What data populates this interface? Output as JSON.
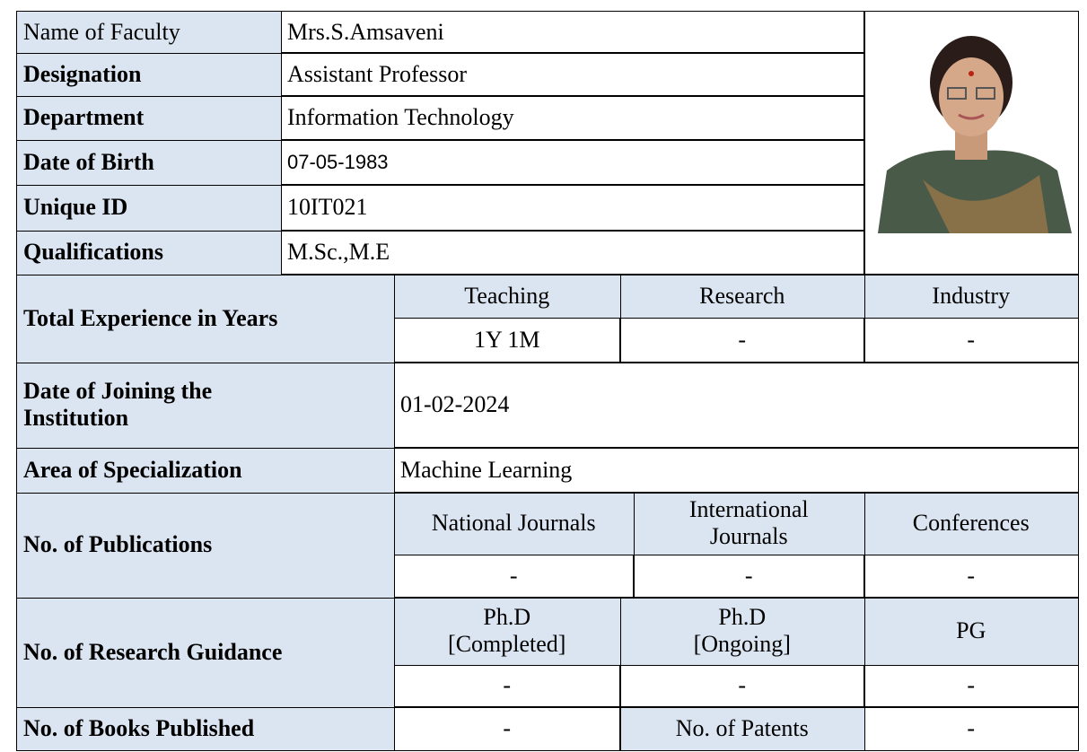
{
  "profile": {
    "rows": [
      [
        "Name of Faculty",
        "Mrs.S.Amsaveni"
      ],
      [
        "Designation",
        "Assistant Professor"
      ],
      [
        "Department",
        "Information Technology"
      ],
      [
        "Date of Birth",
        "07-05-1983"
      ],
      [
        "Unique ID",
        "10IT021"
      ],
      [
        "Qualifications",
        "M.Sc.,M.E"
      ]
    ]
  },
  "experience": {
    "label": "Total Experience in Years",
    "headers": [
      "Teaching",
      "Research",
      "Industry"
    ],
    "values": [
      "1Y 1M",
      "-",
      "-"
    ]
  },
  "joining": {
    "label": "Date of Joining the\nInstitution",
    "value": "01-02-2024"
  },
  "specialization": {
    "label": "Area of Specialization",
    "value": "Machine Learning"
  },
  "publications": {
    "label": "No. of  Publications",
    "headers": [
      "National Journals",
      "International\nJournals",
      "Conferences"
    ],
    "values": [
      "-",
      "-",
      "-"
    ]
  },
  "research_guidance": {
    "label": "No. of Research Guidance",
    "headers": [
      "Ph.D\n[Completed]",
      "Ph.D\n[Ongoing]",
      "PG"
    ],
    "values": [
      "-",
      "-",
      "-"
    ]
  },
  "books": {
    "label": "No. of Books Published",
    "value": "-",
    "patents_label": "No. of Patents",
    "patents_value": "-"
  }
}
